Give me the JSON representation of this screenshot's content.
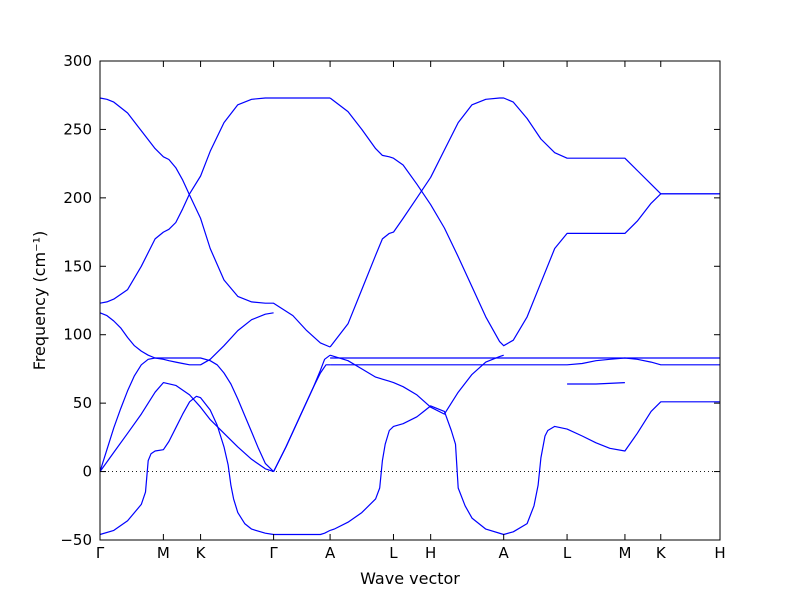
{
  "chart_data": {
    "type": "line",
    "title": "",
    "xlabel": "Wave vector",
    "ylabel": "Frequency (cm⁻¹)",
    "ylim": [
      -50,
      300
    ],
    "yticks": [
      -50,
      0,
      50,
      100,
      150,
      200,
      250,
      300
    ],
    "ytick_labels": [
      "−50",
      "0",
      "50",
      "100",
      "150",
      "200",
      "250",
      "300"
    ],
    "xlim": [
      0,
      4.5
    ],
    "xticks": [
      {
        "x": 0.0,
        "label": "Γ"
      },
      {
        "x": 0.46,
        "label": "M"
      },
      {
        "x": 0.73,
        "label": "K"
      },
      {
        "x": 1.26,
        "label": "Γ"
      },
      {
        "x": 1.67,
        "label": "A"
      },
      {
        "x": 2.13,
        "label": "L"
      },
      {
        "x": 2.4,
        "label": "H"
      },
      {
        "x": 2.93,
        "label": "A"
      },
      {
        "x": 3.39,
        "label": "L"
      },
      {
        "x": 3.81,
        "label": "M"
      },
      {
        "x": 4.07,
        "label": "K"
      },
      {
        "x": 4.5,
        "label": "H"
      }
    ],
    "zero_line": true,
    "grid": false,
    "series_color": "#0000ff",
    "series": [
      {
        "x": [
          0,
          0.05,
          0.1,
          0.15,
          0.2,
          0.25,
          0.3,
          0.35,
          0.4,
          0.46,
          0.5,
          0.55,
          0.6,
          0.65,
          0.7,
          0.73,
          0.8,
          0.9,
          1.0,
          1.1,
          1.2,
          1.26
        ],
        "y": [
          116,
          114,
          110,
          105,
          98,
          92,
          88,
          85,
          83,
          82,
          81,
          80,
          79,
          78,
          78,
          78,
          82,
          92,
          103,
          111,
          115,
          116
        ]
      },
      {
        "x": [
          0,
          0.05,
          0.1,
          0.15,
          0.2,
          0.25,
          0.3,
          0.35,
          0.4,
          0.46,
          0.55,
          0.65,
          0.73,
          0.8,
          0.85,
          0.9,
          0.95,
          1.0,
          1.05,
          1.1,
          1.15,
          1.2,
          1.26
        ],
        "y": [
          0,
          16,
          32,
          46,
          59,
          70,
          78,
          82,
          83,
          83,
          83,
          83,
          83,
          81,
          78,
          72,
          64,
          53,
          41,
          29,
          17,
          6,
          0
        ]
      },
      {
        "x": [
          0,
          0.1,
          0.2,
          0.3,
          0.4,
          0.46,
          0.55,
          0.65,
          0.73,
          0.8,
          0.9,
          1.0,
          1.1,
          1.2,
          1.26
        ],
        "y": [
          0,
          14,
          28,
          42,
          58,
          65,
          63,
          56,
          47,
          38,
          28,
          18,
          9,
          2,
          0
        ]
      },
      {
        "x": [
          0,
          0.1,
          0.2,
          0.3,
          0.33,
          0.35,
          0.37,
          0.4,
          0.46,
          0.5,
          0.55,
          0.6,
          0.65,
          0.7,
          0.73,
          0.8,
          0.85,
          0.9,
          0.93,
          0.95,
          0.97,
          1.0,
          1.05,
          1.1,
          1.2,
          1.26,
          1.4,
          1.5,
          1.6,
          1.63,
          1.67
        ],
        "y": [
          -46,
          -43,
          -36,
          -24,
          -15,
          8,
          13,
          15,
          16,
          22,
          32,
          42,
          51,
          55,
          54,
          45,
          34,
          18,
          5,
          -10,
          -20,
          -30,
          -38,
          -42,
          -45,
          -46,
          -46,
          -46,
          -46,
          -45,
          -43
        ]
      },
      {
        "x": [
          0,
          0.05,
          0.1,
          0.2,
          0.3,
          0.4,
          0.46,
          0.5,
          0.55,
          0.6,
          0.65,
          0.73,
          0.8,
          0.9,
          1.0,
          1.1,
          1.2,
          1.26,
          1.4,
          1.5,
          1.6,
          1.67
        ],
        "y": [
          273,
          272,
          270,
          262,
          249,
          236,
          230,
          228,
          222,
          213,
          202,
          185,
          163,
          140,
          128,
          124,
          123,
          123,
          114,
          103,
          94,
          91
        ]
      },
      {
        "x": [
          0,
          0.05,
          0.1,
          0.2,
          0.3,
          0.4,
          0.46,
          0.5,
          0.55,
          0.6,
          0.65,
          0.73,
          0.8,
          0.9,
          1.0,
          1.1,
          1.2,
          1.26,
          1.4,
          1.5,
          1.6,
          1.67
        ],
        "y": [
          123,
          124,
          126,
          133,
          150,
          170,
          175,
          177,
          182,
          192,
          203,
          216,
          234,
          255,
          268,
          272,
          273,
          273,
          273,
          273,
          273,
          273
        ]
      },
      {
        "x": [
          1.26,
          1.35,
          1.45,
          1.55,
          1.6,
          1.63,
          1.67
        ],
        "y": [
          0,
          18,
          40,
          62,
          74,
          82,
          85
        ]
      },
      {
        "x": [
          1.26,
          1.35,
          1.45,
          1.55,
          1.6,
          1.64,
          1.67
        ],
        "y": [
          0,
          18,
          40,
          62,
          72,
          78,
          78
        ]
      },
      {
        "x": [
          1.67,
          1.8,
          1.9,
          2.0,
          2.1,
          2.13,
          2.2,
          2.3,
          2.4,
          2.5,
          2.6,
          2.7,
          2.8,
          2.9,
          2.93
        ],
        "y": [
          85,
          81,
          75,
          69,
          66,
          65,
          62,
          56,
          47,
          42,
          58,
          71,
          80,
          84,
          85
        ]
      },
      {
        "x": [
          1.67,
          2.0,
          2.5,
          2.93,
          3.2,
          3.39,
          3.6,
          3.81,
          4.0,
          4.07,
          4.3,
          4.5
        ],
        "y": [
          83,
          83,
          83,
          83,
          83,
          83,
          83,
          83,
          83,
          83,
          83,
          83
        ]
      },
      {
        "x": [
          1.67,
          2.0,
          2.5,
          2.93,
          3.2,
          3.39,
          3.5,
          3.6,
          3.7,
          3.81,
          3.9,
          4.0,
          4.07,
          4.3,
          4.5
        ],
        "y": [
          78,
          78,
          78,
          78,
          78,
          78,
          79,
          81,
          82,
          83,
          82,
          80,
          78,
          78,
          78
        ]
      },
      {
        "x": [
          1.67,
          1.7,
          1.8,
          1.9,
          2.0,
          2.03,
          2.05,
          2.07,
          2.1,
          2.13,
          2.2,
          2.3,
          2.35,
          2.4,
          2.5,
          2.55,
          2.58,
          2.6,
          2.65,
          2.7,
          2.8,
          2.93,
          3.0,
          3.1,
          3.15,
          3.18,
          3.2,
          3.23,
          3.25,
          3.3,
          3.39,
          3.5,
          3.6,
          3.7,
          3.81,
          3.9,
          4.0,
          4.07,
          4.3,
          4.5
        ],
        "y": [
          -43,
          -42,
          -37,
          -30,
          -20,
          -12,
          8,
          20,
          30,
          33,
          35,
          40,
          44,
          48,
          44,
          30,
          20,
          -12,
          -25,
          -34,
          -42,
          -46,
          -44,
          -38,
          -25,
          -10,
          10,
          26,
          30,
          33,
          31,
          26,
          21,
          17,
          15,
          28,
          44,
          51,
          51,
          51
        ]
      },
      {
        "x": [
          1.67,
          1.8,
          1.9,
          2.0,
          2.05,
          2.1,
          2.13,
          2.2,
          2.3,
          2.4,
          2.5,
          2.6,
          2.7,
          2.8,
          2.9,
          2.93,
          3.0,
          3.1,
          3.2,
          3.3,
          3.39,
          3.6,
          3.81,
          3.9,
          4.0,
          4.07,
          4.3,
          4.5
        ],
        "y": [
          273,
          263,
          250,
          236,
          231,
          230,
          229,
          224,
          210,
          195,
          178,
          157,
          135,
          113,
          95,
          92,
          96,
          113,
          138,
          163,
          174,
          174,
          174,
          183,
          196,
          203,
          203,
          203
        ]
      },
      {
        "x": [
          1.67,
          1.8,
          1.9,
          2.0,
          2.05,
          2.1,
          2.13,
          2.2,
          2.3,
          2.4,
          2.5,
          2.6,
          2.7,
          2.8,
          2.9,
          2.93,
          3.0,
          3.1,
          3.2,
          3.3,
          3.39,
          3.6,
          3.81,
          3.9,
          4.0,
          4.07,
          4.3,
          4.5
        ],
        "y": [
          91,
          108,
          133,
          158,
          170,
          174,
          175,
          185,
          200,
          215,
          235,
          255,
          268,
          272,
          273,
          273,
          270,
          258,
          243,
          233,
          229,
          229,
          229,
          220,
          210,
          203,
          203,
          203
        ]
      },
      {
        "x": [
          3.39,
          3.6,
          3.81
        ],
        "y": [
          64,
          64,
          65
        ]
      }
    ]
  }
}
